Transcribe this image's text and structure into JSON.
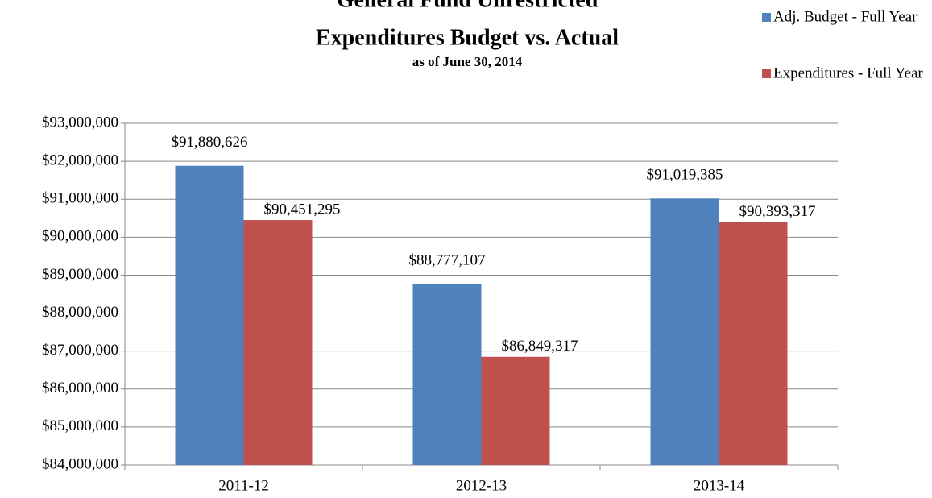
{
  "chart_data": {
    "type": "bar",
    "title": "General Fund Unrestricted",
    "subtitle": "Expenditures Budget vs. Actual",
    "note": "as of June 30, 2014",
    "categories": [
      "2011-12",
      "2012-13",
      "2013-14"
    ],
    "series": [
      {
        "name": "Adj. Budget - Full Year",
        "color": "#4f81bd",
        "values": [
          91880626,
          88777107,
          91019385
        ],
        "value_labels": [
          "$91,880,626",
          "$88,777,107",
          "$91,019,385"
        ]
      },
      {
        "name": "Expenditures - Full Year",
        "color": "#c0504d",
        "values": [
          90451295,
          86849317,
          90393317
        ],
        "value_labels": [
          "$90,451,295",
          "$86,849,317",
          "$90,393,317"
        ]
      }
    ],
    "ylim": [
      84000000,
      93000000
    ],
    "yticks": [
      {
        "value": 84000000,
        "label": "$84,000,000"
      },
      {
        "value": 85000000,
        "label": "$85,000,000"
      },
      {
        "value": 86000000,
        "label": "$86,000,000"
      },
      {
        "value": 87000000,
        "label": "$87,000,000"
      },
      {
        "value": 88000000,
        "label": "$88,000,000"
      },
      {
        "value": 89000000,
        "label": "$89,000,000"
      },
      {
        "value": 90000000,
        "label": "$90,000,000"
      },
      {
        "value": 91000000,
        "label": "$91,000,000"
      },
      {
        "value": 92000000,
        "label": "$92,000,000"
      },
      {
        "value": 93000000,
        "label": "$93,000,000"
      }
    ],
    "grid": true,
    "legend": "top-right"
  }
}
